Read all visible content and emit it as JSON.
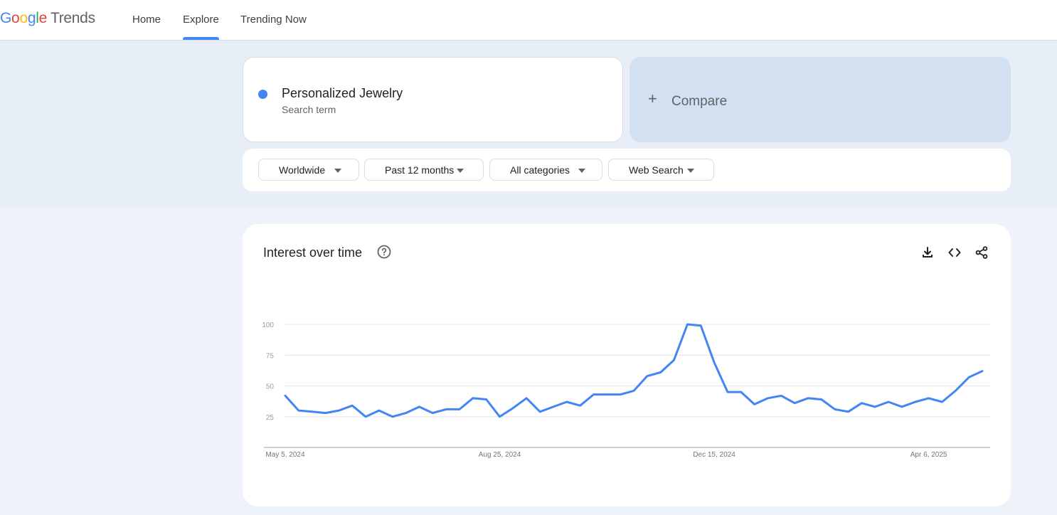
{
  "header": {
    "logo": {
      "google": "Google",
      "product": "Trends"
    },
    "nav": [
      {
        "label": "Home",
        "active": false
      },
      {
        "label": "Explore",
        "active": true
      },
      {
        "label": "Trending Now",
        "active": false
      }
    ],
    "accent_color": "#4285f4"
  },
  "search": {
    "term": "Personalized Jewelry",
    "term_type": "Search term",
    "term_color": "#4285f4",
    "compare_label": "Compare",
    "compare_icon": "plus-icon"
  },
  "filters": [
    {
      "label": "Worldwide",
      "icon": "caret-down-icon"
    },
    {
      "label": "Past 12 months",
      "icon": "caret-down-icon"
    },
    {
      "label": "All categories",
      "icon": "caret-down-icon"
    },
    {
      "label": "Web Search",
      "icon": "caret-down-icon"
    }
  ],
  "interest_panel": {
    "title": "Interest over time",
    "icons": [
      "help-circle-icon",
      "download-icon",
      "embed-code-icon",
      "share-icon"
    ]
  },
  "chart_data": {
    "type": "line",
    "title": "",
    "xlabel": "",
    "ylabel": "",
    "ylim": [
      0,
      100
    ],
    "yticks": [
      25,
      50,
      75,
      100
    ],
    "grid": true,
    "line_color": "#4285f4",
    "x_tick_labels": [
      {
        "label": "May 5, 2024",
        "week_index": 0
      },
      {
        "label": "Aug 25, 2024",
        "week_index": 16
      },
      {
        "label": "Dec 15, 2024",
        "week_index": 32
      },
      {
        "label": "Apr 6, 2025",
        "week_index": 48
      }
    ],
    "series": [
      {
        "values": [
          42,
          30,
          29,
          28,
          30,
          34,
          25,
          30,
          25,
          28,
          33,
          28,
          31,
          31,
          40,
          39,
          25,
          32,
          40,
          29,
          33,
          37,
          34,
          43,
          43,
          43,
          46,
          58,
          61,
          71,
          100,
          99,
          69,
          45,
          45,
          35,
          40,
          42,
          36,
          40,
          39,
          31,
          29,
          36,
          33,
          37,
          33,
          37,
          40,
          37,
          46,
          57,
          62
        ]
      }
    ]
  }
}
